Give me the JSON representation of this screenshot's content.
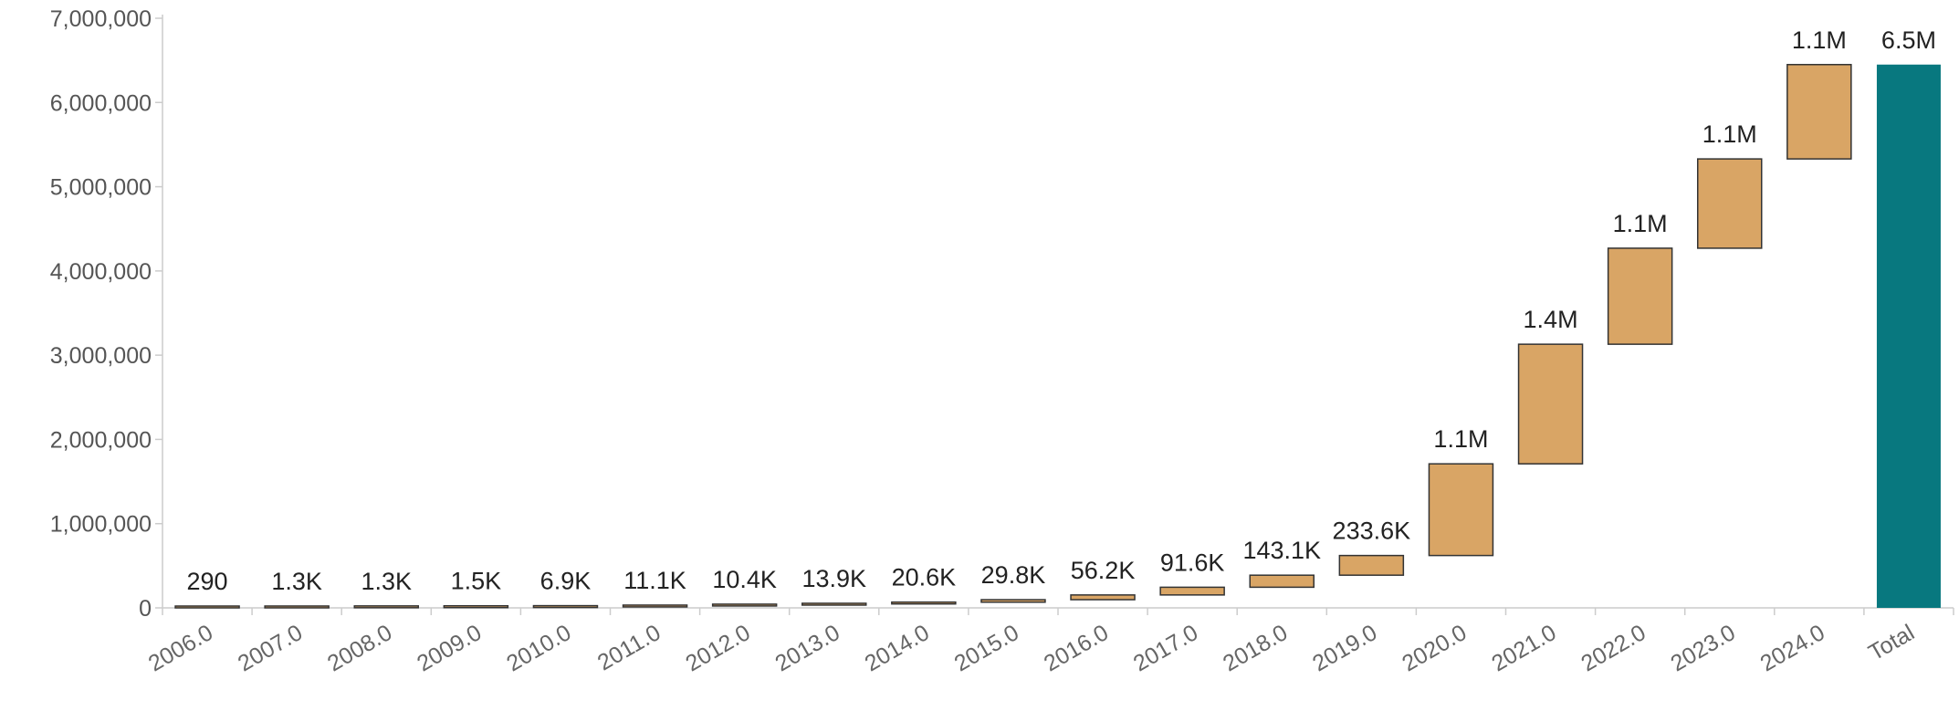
{
  "chart_data": {
    "type": "bar",
    "subtype": "waterfall",
    "title": "",
    "xlabel": "",
    "ylabel": "",
    "ylim": [
      0,
      7000000
    ],
    "y_ticks": [
      0,
      1000000,
      2000000,
      3000000,
      4000000,
      5000000,
      6000000,
      7000000
    ],
    "y_tick_labels": [
      "0",
      "1,000,000",
      "2,000,000",
      "3,000,000",
      "4,000,000",
      "5,000,000",
      "6,000,000",
      "7,000,000"
    ],
    "grid": false,
    "legend": "none",
    "categories": [
      "2006.0",
      "2007.0",
      "2008.0",
      "2009.0",
      "2010.0",
      "2011.0",
      "2012.0",
      "2013.0",
      "2014.0",
      "2015.0",
      "2016.0",
      "2017.0",
      "2018.0",
      "2019.0",
      "2020.0",
      "2021.0",
      "2022.0",
      "2023.0",
      "2024.0",
      "Total"
    ],
    "values": [
      290,
      1300,
      1300,
      1500,
      6900,
      11100,
      10400,
      13900,
      20600,
      29800,
      56200,
      91600,
      143100,
      233600,
      1100000,
      1400000,
      1100000,
      1100000,
      1100000,
      6500000
    ],
    "data_labels": [
      "290",
      "1.3K",
      "1.3K",
      "1.5K",
      "6.9K",
      "11.1K",
      "10.4K",
      "13.9K",
      "20.6K",
      "29.8K",
      "56.2K",
      "91.6K",
      "143.1K",
      "233.6K",
      "1.1M",
      "1.4M",
      "1.1M",
      "1.1M",
      "1.1M",
      "6.5M"
    ],
    "cumulative_end": [
      290,
      1590,
      2890,
      4390,
      11290,
      22390,
      32790,
      46690,
      67290,
      97090,
      153290,
      244890,
      388000,
      621600,
      1710000,
      3130000,
      4270000,
      5330000,
      6450000,
      6450000
    ],
    "colors": {
      "increase": "#d9a565",
      "total": "#08787f",
      "outline": "#333333"
    }
  }
}
